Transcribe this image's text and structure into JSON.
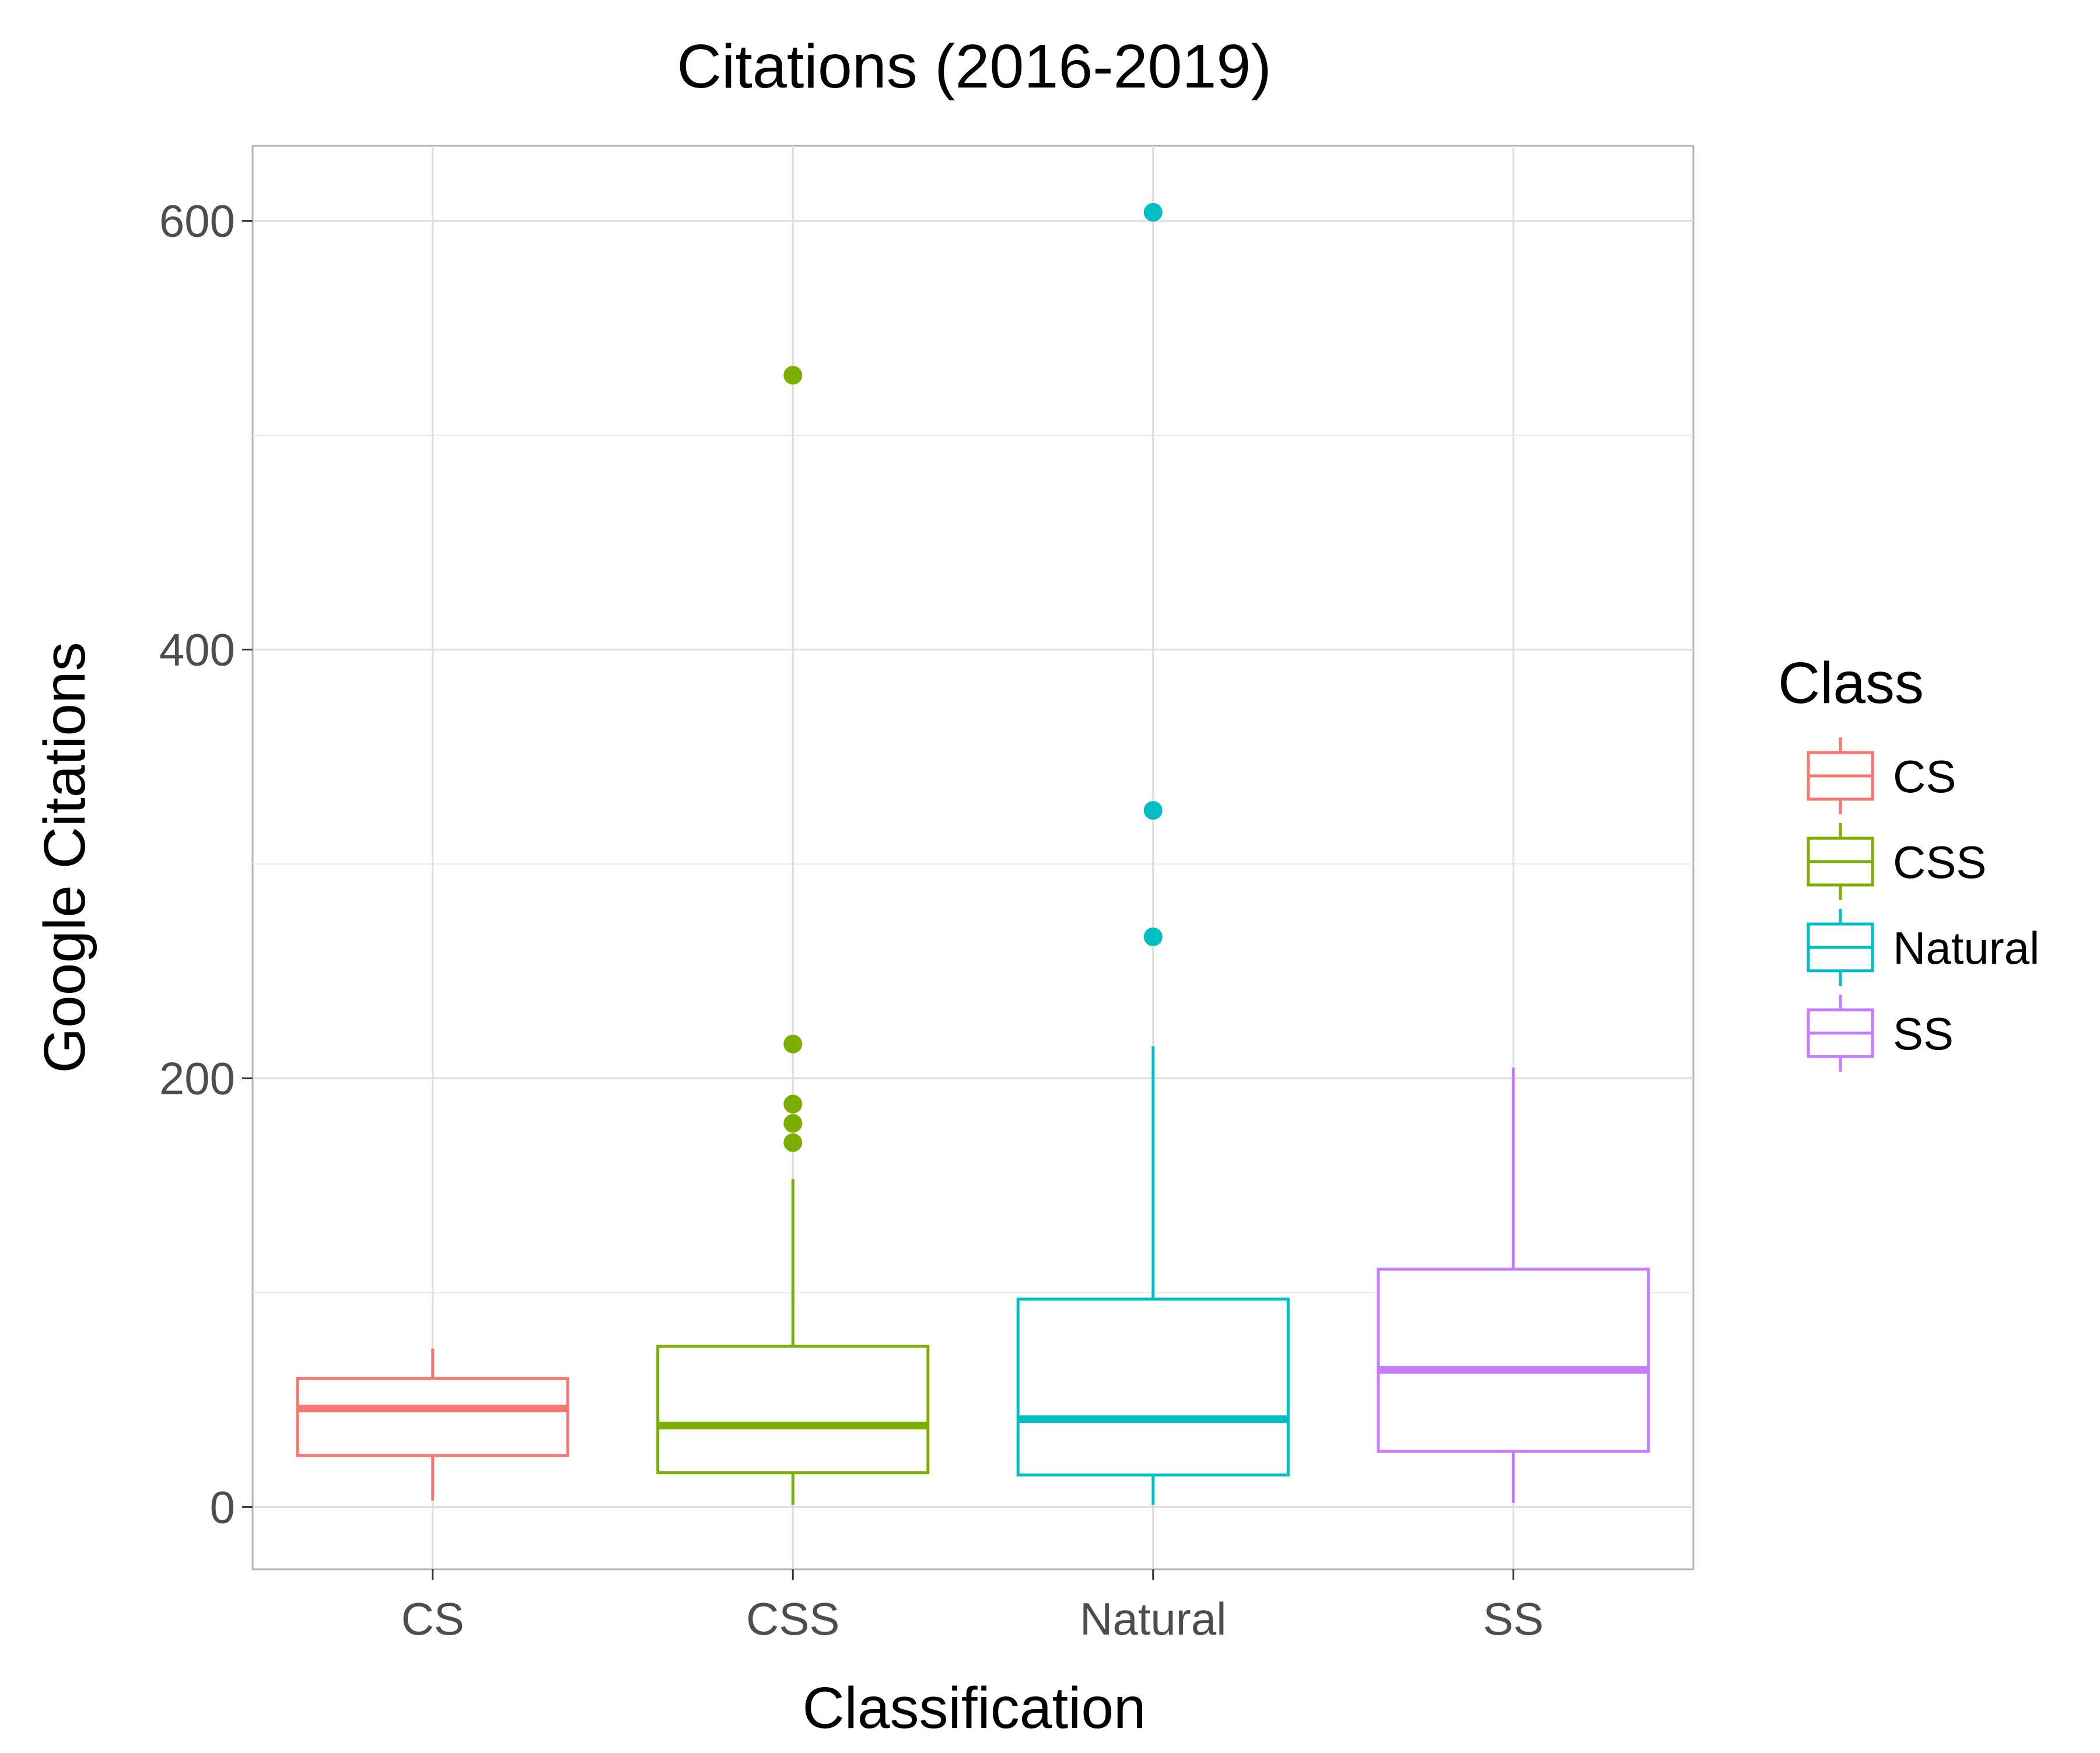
{
  "chart_data": {
    "type": "box",
    "title": "Citations (2016-2019)",
    "xlabel": "Classification",
    "ylabel": "Google Citations",
    "categories": [
      "CS",
      "CSS",
      "Natural",
      "SS"
    ],
    "y_ticks": [
      0,
      200,
      400,
      600
    ],
    "ylim": [
      -29,
      635
    ],
    "grid": true,
    "legend": {
      "title": "Class",
      "position": "right",
      "entries": [
        "CS",
        "CSS",
        "Natural",
        "SS"
      ]
    },
    "colors": {
      "CS": "#F8766D",
      "CSS": "#7CAE00",
      "Natural": "#00BFC4",
      "SS": "#C77CFF"
    },
    "series": [
      {
        "category": "CS",
        "min": 3,
        "q1": 24,
        "median": 46,
        "q3": 60,
        "max": 74,
        "outliers": []
      },
      {
        "category": "CSS",
        "min": 1,
        "q1": 16,
        "median": 38,
        "q3": 75,
        "max": 153,
        "outliers": [
          528,
          216,
          188,
          179,
          170
        ]
      },
      {
        "category": "Natural",
        "min": 1,
        "q1": 15,
        "median": 41,
        "q3": 97,
        "max": 215,
        "outliers": [
          604,
          325,
          266
        ]
      },
      {
        "category": "SS",
        "min": 2,
        "q1": 26,
        "median": 64,
        "q3": 111,
        "max": 205,
        "outliers": []
      }
    ]
  }
}
